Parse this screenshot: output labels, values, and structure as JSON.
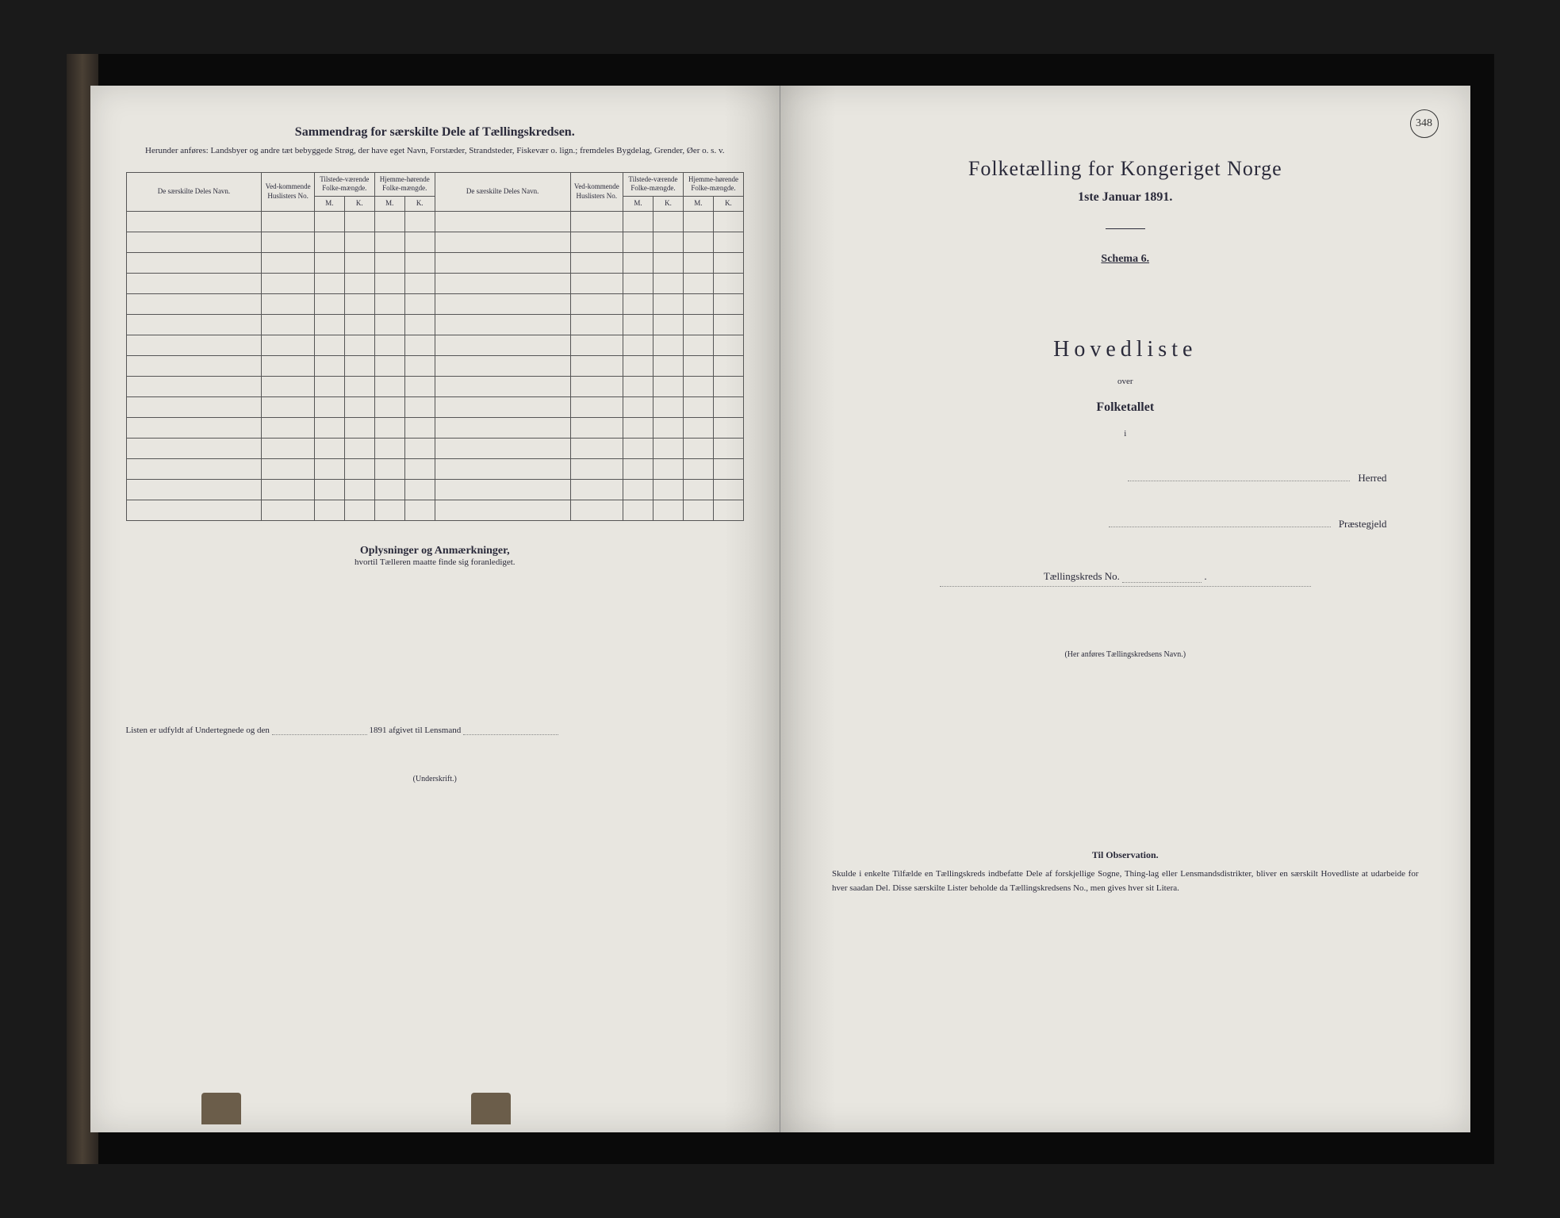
{
  "pageNumber": "348",
  "leftPage": {
    "sectionTitle": "Sammendrag for særskilte Dele af Tællingskredsen.",
    "sectionSubtitle": "Herunder anføres: Landsbyer og andre tæt bebyggede Strøg, der have eget Navn, Forstæder, Strandsteder, Fiskevær o. lign.; fremdeles Bygdelag, Grender, Øer o. s. v.",
    "tableHeaders": {
      "nameCol": "De særskilte Deles Navn.",
      "noCol": "Ved-kommende Huslisters No.",
      "tilstede": "Tilstede-værende Folke-mængde.",
      "hjemme": "Hjemme-hørende Folke-mængde.",
      "m": "M.",
      "k": "K."
    },
    "annotationsTitle": "Oplysninger og Anmærkninger,",
    "annotationsSub": "hvortil Tælleren maatte finde sig foranlediget.",
    "footerPrefix": "Listen er udfyldt af Undertegnede og den",
    "footerYear": "1891 afgivet til Lensmand",
    "signature": "(Underskrift.)"
  },
  "rightPage": {
    "title": "Folketælling for Kongeriget Norge",
    "date": "1ste Januar 1891.",
    "schema": "Schema 6.",
    "hovedliste": "Hovedliste",
    "over": "over",
    "folketallet": "Folketallet",
    "i": "i",
    "herred": "Herred",
    "praestegjeld": "Præstegjeld",
    "kreds": "Tællingskreds No.",
    "navnNote": "(Her anføres Tællingskredsens Navn.)",
    "observationTitle": "Til Observation.",
    "observationBody": "Skulde i enkelte Tilfælde en Tællingskreds indbefatte Dele af forskjellige Sogne, Thing-lag eller Lensmandsdistrikter, bliver en særskilt Hovedliste at udarbeide for hver saadan Del. Disse særskilte Lister beholde da Tællingskredsens No., men gives hver sit Litera."
  },
  "colors": {
    "pageBg": "#e8e6e0",
    "ink": "#2a2a3a",
    "border": "#555",
    "bookBg": "#1a1a1a"
  }
}
